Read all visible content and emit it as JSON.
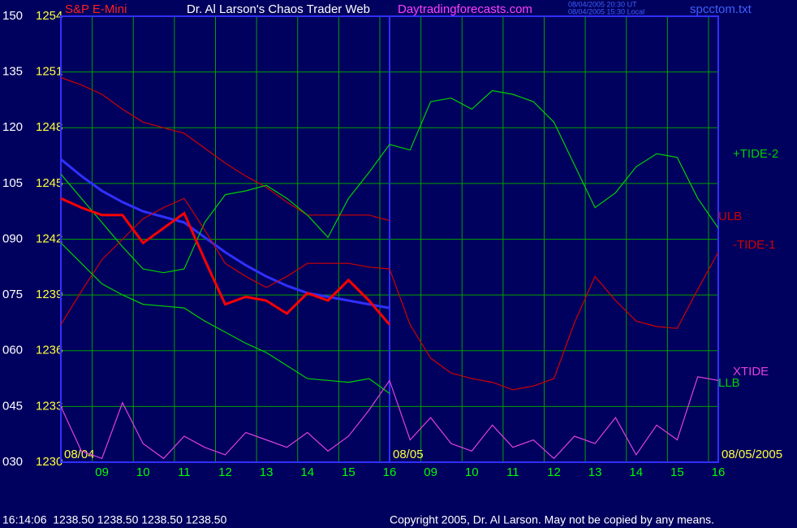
{
  "chart_data": {
    "type": "line",
    "symbol": "S&P E-Mini",
    "title": "Dr. Al Larson's Chaos Trader Web",
    "subtitle": "Daytradingforecasts.com",
    "timestamps": [
      "08/04/2005 20:30 UT",
      "08/04/2005 15:30 Local"
    ],
    "file": "spcctom.txt",
    "status": "16:14:06  1238.50 1238.50 1238.50 1238.50",
    "copyright": "Copyright 2005, Dr. Al Larson. May not be copied by any means.",
    "x": [
      0,
      0.5,
      1,
      1.5,
      2,
      2.5,
      3,
      3.5,
      4,
      4.5,
      5,
      5.5,
      6,
      6.5,
      7,
      7.5,
      8,
      8.5,
      9,
      9.5,
      10,
      10.5,
      11,
      11.5,
      12,
      12.5,
      13,
      13.5,
      14,
      14.5,
      15,
      15.5,
      16
    ],
    "xlim": [
      0,
      16
    ],
    "xticks": [
      {
        "value": 1,
        "label": "09"
      },
      {
        "value": 2,
        "label": "10"
      },
      {
        "value": 3,
        "label": "11"
      },
      {
        "value": 4,
        "label": "12"
      },
      {
        "value": 5,
        "label": "13"
      },
      {
        "value": 6,
        "label": "14"
      },
      {
        "value": 7,
        "label": "15"
      },
      {
        "value": 8,
        "label": "16"
      },
      {
        "value": 9,
        "label": "09"
      },
      {
        "value": 10,
        "label": "10"
      },
      {
        "value": 11,
        "label": "11"
      },
      {
        "value": 12,
        "label": "12"
      },
      {
        "value": 13,
        "label": "13"
      },
      {
        "value": 14,
        "label": "14"
      },
      {
        "value": 15,
        "label": "15"
      },
      {
        "value": 16,
        "label": "16"
      }
    ],
    "day_labels": [
      {
        "value": 0,
        "label": "08/04"
      },
      {
        "value": 8,
        "label": "08/05"
      },
      {
        "value": 16,
        "label": "08/05/2005"
      }
    ],
    "ylim": [
      1230,
      1254
    ],
    "yticks": [
      1230,
      1233,
      1236,
      1239,
      1242,
      1245,
      1248,
      1251,
      1254
    ],
    "y2lim": [
      30,
      150
    ],
    "y2ticks": [
      {
        "value": 30,
        "label": "030"
      },
      {
        "value": 45,
        "label": "045"
      },
      {
        "value": 60,
        "label": "060"
      },
      {
        "value": 75,
        "label": "075"
      },
      {
        "value": 90,
        "label": "090"
      },
      105,
      120,
      135,
      150
    ],
    "grid": true,
    "series": [
      {
        "color": "#3030ff",
        "values": [
          1246.3,
          1245.4,
          1244.6,
          1244.0,
          1243.5,
          1243.2,
          1242.9,
          1242.1,
          1241.3,
          1240.6,
          1240.0,
          1239.5,
          1239.1,
          1238.9,
          1238.7,
          1238.5,
          1238.3,
          null,
          null,
          null,
          null,
          null,
          null,
          null,
          null,
          null,
          null,
          null,
          null,
          null,
          null,
          null,
          null
        ]
      },
      {
        "name": "ULB",
        "color": "#d00000",
        "values": [
          1250.7,
          1250.3,
          1249.8,
          1249.0,
          1248.3,
          1248.0,
          1247.7,
          1246.9,
          1246.1,
          1245.4,
          1244.8,
          1244.0,
          1243.3,
          1243.3,
          1243.3,
          1243.3,
          1243.0,
          null,
          null,
          null,
          null,
          null,
          null,
          null,
          null,
          null,
          null,
          null,
          null,
          null,
          null,
          null,
          null
        ]
      },
      {
        "name": "+TIDE-2",
        "color": "#00d000",
        "values": [
          1245.5,
          1244.2,
          1242.9,
          1241.6,
          1240.4,
          1240.2,
          1240.4,
          1242.9,
          1244.4,
          1244.6,
          1244.9,
          1244.2,
          1243.3,
          1242.1,
          1244.2,
          1245.6,
          1247.1,
          1246.8,
          1249.4,
          1249.6,
          1249.0,
          1250.0,
          1249.8,
          1249.4,
          1248.3,
          1246.0,
          1243.7,
          1244.5,
          1245.9,
          1246.6,
          1246.4,
          1244.2,
          1242.6
        ]
      },
      {
        "name": "-TIDE-1",
        "color": "#d00000",
        "values": [
          1237.4,
          1239.2,
          1240.9,
          1242.0,
          1243.1,
          1243.7,
          1244.2,
          1242.5,
          1240.7,
          1240.0,
          1239.4,
          1240.0,
          1240.7,
          1240.7,
          1240.7,
          1240.5,
          1240.4,
          1237.4,
          1235.6,
          1234.8,
          1234.5,
          1234.3,
          1233.9,
          1234.1,
          1234.5,
          1237.5,
          1240.0,
          1238.7,
          1237.6,
          1237.3,
          1237.2,
          1239.3,
          1241.3
        ]
      },
      {
        "name": "LLB",
        "color": "#00d000",
        "values": [
          1241.8,
          1240.7,
          1239.6,
          1239.0,
          1238.5,
          1238.4,
          1238.3,
          1237.6,
          1237.0,
          1236.4,
          1235.9,
          1235.2,
          1234.5,
          1234.4,
          1234.3,
          1234.5,
          1233.7,
          null,
          null,
          null,
          null,
          null,
          null,
          null,
          null,
          null,
          null,
          null,
          null,
          null,
          null,
          null,
          null
        ]
      },
      {
        "name": "XTIDE",
        "color": "#e040e0",
        "axis": "y2",
        "values": [
          45,
          33,
          31,
          46,
          35,
          31,
          37,
          34,
          32,
          38,
          36,
          34,
          38,
          33,
          37,
          44,
          52,
          36,
          42,
          35,
          33,
          40,
          34,
          36,
          31,
          37,
          35,
          42,
          32,
          40,
          36,
          53,
          52
        ]
      },
      {
        "color": "#ff0000",
        "values": [
          1244.2,
          1243.7,
          1243.3,
          1243.3,
          1241.8,
          1242.6,
          1243.4,
          1240.9,
          1238.5,
          1238.9,
          1238.7,
          1238.0,
          1239.1,
          1238.7,
          1239.8,
          1238.7,
          1237.4,
          null,
          null,
          null,
          null,
          null,
          null,
          null,
          null,
          null,
          null,
          null,
          null,
          null,
          null,
          null,
          null
        ]
      }
    ]
  }
}
